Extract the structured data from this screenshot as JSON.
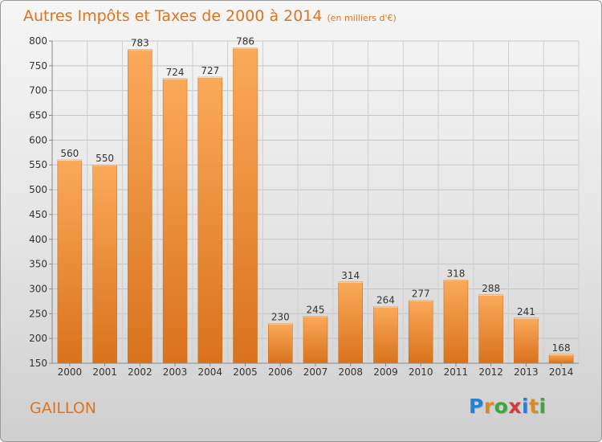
{
  "chart_data": {
    "type": "bar",
    "title": "Autres Impôts et Taxes de 2000 à 2014",
    "subtitle": "(en milliers d'€)",
    "categories": [
      "2000",
      "2001",
      "2002",
      "2003",
      "2004",
      "2005",
      "2006",
      "2007",
      "2008",
      "2009",
      "2010",
      "2011",
      "2012",
      "2013",
      "2014"
    ],
    "values": [
      560,
      550,
      783,
      724,
      727,
      786,
      230,
      245,
      314,
      264,
      277,
      318,
      288,
      241,
      168
    ],
    "ylim": [
      150,
      800
    ],
    "yticks": [
      150,
      200,
      250,
      300,
      350,
      400,
      450,
      500,
      550,
      600,
      650,
      700,
      750,
      800
    ],
    "grid": true,
    "xlabel": "",
    "ylabel": ""
  },
  "footer": {
    "town": "GAILLON"
  },
  "logo": {
    "letters": [
      "P",
      "r",
      "o",
      "x",
      "i",
      "t",
      "i"
    ],
    "colors": [
      "#2a7fd0",
      "#e08a1e",
      "#3aa83a",
      "#d33c3c",
      "#2a7fd0",
      "#e08a1e",
      "#3aa83a"
    ]
  },
  "colors": {
    "bar_light": "#fbaa5a",
    "bar_dark": "#d9721c",
    "title": "#e0731f"
  }
}
